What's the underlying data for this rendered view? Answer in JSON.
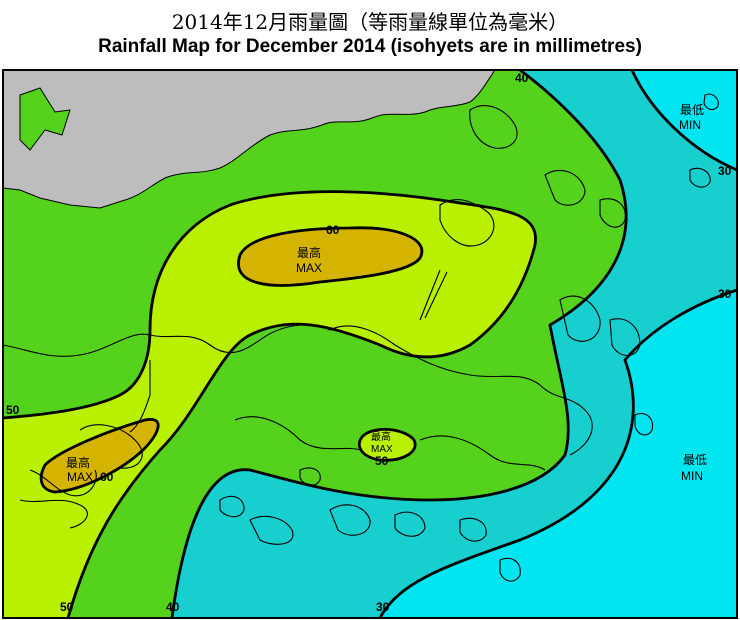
{
  "title_zh": "2014年12月雨量圖（等雨量線單位為毫米）",
  "title_en": "Rainfall Map for December 2014 (isohyets are in millimetres)",
  "colors": {
    "land_mainland": "#bdbdbd",
    "band_gt60": "#d4b400",
    "band_50_60": "#b8f000",
    "band_40_50": "#55d21c",
    "band_30_40": "#18cfcf",
    "band_lt30": "#00e5f0",
    "isohyet": "#000000",
    "coast": "#000000"
  },
  "isohyet_labels": {
    "top_40": "40",
    "top_30": "30",
    "right_30": "30",
    "left_50": "50",
    "bottom_50": "50",
    "bottom_40": "40",
    "bottom_30": "30",
    "max1_60": "60",
    "max2_60": "60",
    "max3_50": "50"
  },
  "extremes": {
    "max1": {
      "zh": "最高",
      "en": "MAX"
    },
    "max2": {
      "zh": "最高",
      "en": "MAX"
    },
    "max3": {
      "zh": "最高",
      "en": "MAX"
    },
    "min1": {
      "zh": "最低",
      "en": "MIN"
    },
    "min2": {
      "zh": "最低",
      "en": "MIN"
    }
  }
}
